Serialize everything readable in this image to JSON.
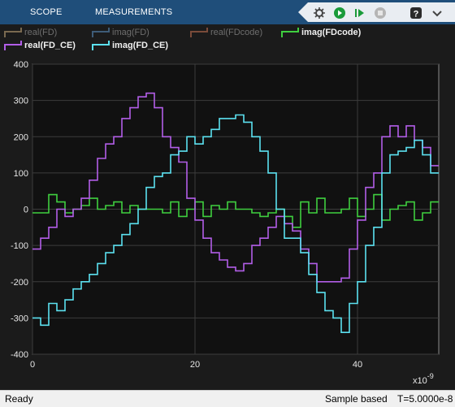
{
  "toolstrip": {
    "tabs": [
      {
        "label": "SCOPE"
      },
      {
        "label": "MEASUREMENTS"
      }
    ],
    "quick_access": [
      "settings-icon",
      "run-icon",
      "step-forward-icon",
      "stop-icon",
      "help-icon",
      "expand-icon"
    ]
  },
  "colors": {
    "toolstrip_bg": "#1f4e7a",
    "plot_bg": "#111111",
    "grid": "#3c3c3c",
    "real_fd_ce": "#b25ee8",
    "imag_fd_ce": "#5ce1f0",
    "imag_fdcode": "#3fcf3f",
    "dimmed": "#7a7a7a"
  },
  "legend": [
    {
      "label": "real(FD)",
      "color": "#7a6a50",
      "active": false
    },
    {
      "label": "imag(FD)",
      "color": "#3e5c78",
      "active": false
    },
    {
      "label": "real(FDcode)",
      "color": "#7a4b3a",
      "active": false
    },
    {
      "label": "imag(FDcode)",
      "color": "#3fcf3f",
      "active": true
    },
    {
      "label": "real(FD_CE)",
      "color": "#b25ee8",
      "active": true
    },
    {
      "label": "imag(FD_CE)",
      "color": "#5ce1f0",
      "active": true
    }
  ],
  "chart_data": {
    "type": "line",
    "style": "stairs",
    "xlim": [
      0,
      50
    ],
    "ylim": [
      -400,
      400
    ],
    "xticks": [
      0,
      20,
      40
    ],
    "yticks": [
      -400,
      -300,
      -200,
      -100,
      0,
      100,
      200,
      300,
      400
    ],
    "x_multiplier": "x10",
    "x_multiplier_exp": "-9",
    "grid": true,
    "series": [
      {
        "name": "imag(FDcode)",
        "color": "#3fcf3f",
        "values": [
          -10,
          -10,
          40,
          20,
          -10,
          0,
          10,
          30,
          0,
          10,
          20,
          -10,
          10,
          0,
          0,
          0,
          -10,
          20,
          -20,
          0,
          20,
          -20,
          10,
          0,
          20,
          0,
          0,
          -10,
          -20,
          -10,
          0,
          -20,
          -50,
          20,
          -10,
          30,
          -10,
          -10,
          0,
          30,
          -20,
          0,
          40,
          -30,
          0,
          10,
          20,
          -30,
          -10,
          20
        ]
      },
      {
        "name": "real(FD_CE)",
        "color": "#b25ee8",
        "values": [
          -110,
          -80,
          -50,
          0,
          -20,
          0,
          30,
          80,
          140,
          180,
          200,
          250,
          280,
          310,
          320,
          280,
          200,
          170,
          130,
          30,
          -30,
          -80,
          -120,
          -140,
          -160,
          -170,
          -150,
          -100,
          -80,
          -50,
          -20,
          -40,
          -60,
          -110,
          -150,
          -200,
          -200,
          -200,
          -190,
          -110,
          -30,
          60,
          100,
          200,
          230,
          200,
          230,
          190,
          170,
          120
        ]
      },
      {
        "name": "imag(FD_CE)",
        "color": "#5ce1f0",
        "values": [
          -300,
          -320,
          -260,
          -280,
          -250,
          -220,
          -200,
          -180,
          -150,
          -120,
          -100,
          -70,
          -40,
          0,
          60,
          90,
          100,
          150,
          160,
          200,
          180,
          200,
          220,
          250,
          250,
          260,
          240,
          200,
          160,
          100,
          0,
          -80,
          -80,
          -120,
          -180,
          -230,
          -280,
          -300,
          -340,
          -260,
          -200,
          -100,
          -50,
          100,
          150,
          160,
          170,
          190,
          150,
          100
        ]
      }
    ]
  },
  "status": {
    "left": "Ready",
    "mode": "Sample based",
    "time": "T=5.0000e-8"
  }
}
